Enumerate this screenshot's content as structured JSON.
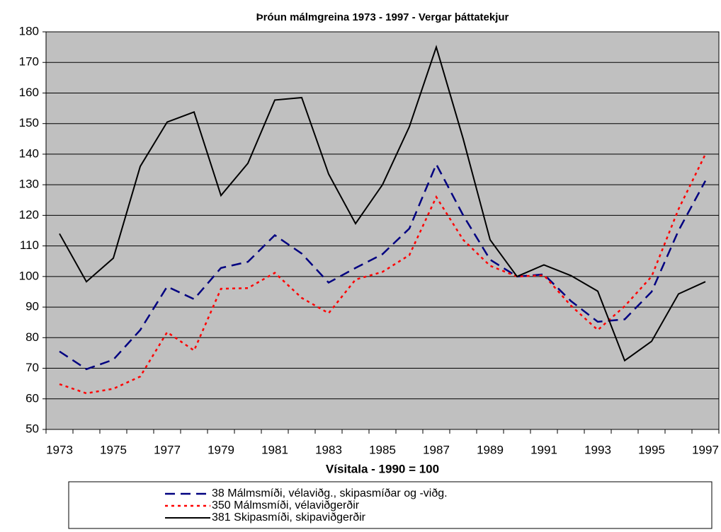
{
  "chart_data": {
    "type": "line",
    "title": "Þróun málmgreina 1973 - 1997 - Vergar þáttatekjur",
    "x_label": "Vísitala - 1990 = 100",
    "categories": [
      "1973",
      null,
      "1975",
      null,
      "1977",
      null,
      "1979",
      null,
      "1981",
      null,
      "1983",
      null,
      "1985",
      null,
      "1987",
      null,
      "1989",
      null,
      "1991",
      null,
      "1993",
      null,
      "1995",
      null,
      "1997"
    ],
    "series": [
      {
        "name": "38 Málmsmíði, vélaviðg., skipasmíðar og -viðg.",
        "color": "#000080",
        "dash": "dashed",
        "values": [
          75.5,
          69.7,
          72.8,
          82.5,
          96.7,
          92.6,
          102.8,
          104.8,
          113.5,
          107.5,
          98,
          102.8,
          107.3,
          115.7,
          136.7,
          120,
          105.5,
          100,
          100.7,
          92,
          85.2,
          86,
          95,
          115,
          131.3
        ]
      },
      {
        "name": "350 Málmsmíði, vélaviðgerðir",
        "color": "#ff0000",
        "dash": "dotted",
        "values": [
          64.8,
          61.8,
          63.3,
          67.3,
          81.8,
          75.8,
          96,
          96.2,
          101.2,
          93,
          88,
          99,
          101.5,
          107,
          126,
          112,
          103.5,
          100,
          100.4,
          90.5,
          82.5,
          90.3,
          100,
          122,
          140
        ]
      },
      {
        "name": "381 Skipasmíði, skipaviðgerðir",
        "color": "#000000",
        "dash": "solid",
        "values": [
          114,
          98.3,
          106,
          136,
          150.5,
          153.8,
          126.5,
          137,
          157.7,
          158.5,
          133.5,
          117.3,
          130,
          149,
          175,
          145,
          112,
          100,
          103.8,
          100.3,
          95.2,
          72.5,
          78.8,
          94.3,
          98.3
        ]
      }
    ],
    "ylim": [
      50,
      180
    ],
    "yticks": [
      50,
      60,
      70,
      80,
      90,
      100,
      110,
      120,
      130,
      140,
      150,
      160,
      170,
      180
    ],
    "grid": true,
    "legend": "bottom",
    "plot_color": "#c0c0c0"
  }
}
